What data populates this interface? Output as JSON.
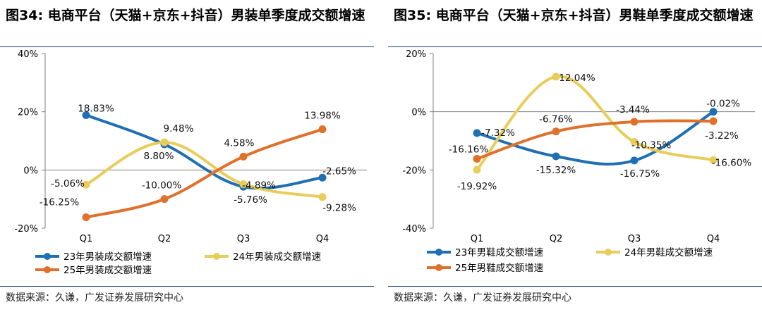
{
  "charts": [
    {
      "figure_label": "图34:",
      "title": "电商平台（天猫+京东+抖音）男装单季度成交额增速",
      "source": "数据来源：久谦，广发证券发展研究中心"
    },
    {
      "figure_label": "图35:",
      "title": "电商平台（天猫+京东+抖音）男鞋单季度成交额增速",
      "source": "数据来源：久谦，广发证券发展研究中心"
    }
  ],
  "chart_data": [
    {
      "type": "line",
      "title": "图34: 电商平台（天猫+京东+抖音）男装单季度成交额增速",
      "categories": [
        "Q1",
        "Q2",
        "Q3",
        "Q4"
      ],
      "ylim": [
        -20,
        40
      ],
      "yticks": [
        -20,
        0,
        20,
        40
      ],
      "ytick_labels": [
        "-20%",
        "0%",
        "20%",
        "40%"
      ],
      "grid": false,
      "legend_position": "bottom",
      "series": [
        {
          "name": "23年男装成交额增速",
          "color": "#1f6fb2",
          "values": [
            18.83,
            8.8,
            -5.76,
            -2.65
          ],
          "labels": [
            "18.83%",
            "8.80%",
            "-5.76%",
            "-2.65%"
          ]
        },
        {
          "name": "24年男装成交额增速",
          "color": "#e8cd5a",
          "values": [
            -5.06,
            9.48,
            -4.89,
            -9.28
          ],
          "labels": [
            "-5.06%",
            "9.48%",
            "-4.89%",
            "-9.28%"
          ]
        },
        {
          "name": "25年男装成交额增速",
          "color": "#e0702b",
          "values": [
            -16.25,
            -10.0,
            4.58,
            13.98
          ],
          "labels": [
            "-16.25%",
            "-10.00%",
            "4.58%",
            "13.98%"
          ]
        }
      ]
    },
    {
      "type": "line",
      "title": "图35: 电商平台（天猫+京东+抖音）男鞋单季度成交额增速",
      "categories": [
        "Q1",
        "Q2",
        "Q3",
        "Q4"
      ],
      "ylim": [
        -40,
        20
      ],
      "yticks": [
        -40,
        -20,
        0,
        20
      ],
      "ytick_labels": [
        "-40%",
        "-20%",
        "0%",
        "20%"
      ],
      "grid": false,
      "legend_position": "bottom",
      "series": [
        {
          "name": "23年男鞋成交额增速",
          "color": "#1f6fb2",
          "values": [
            -7.32,
            -15.32,
            -16.75,
            -0.02
          ],
          "labels": [
            "-7.32%",
            "-15.32%",
            "-16.75%",
            "-0.02%"
          ]
        },
        {
          "name": "24年男鞋成交额增速",
          "color": "#e8cd5a",
          "values": [
            -19.92,
            12.04,
            -10.35,
            -16.6
          ],
          "labels": [
            "-19.92%",
            "12.04%",
            "-10.35%",
            "-16.60%"
          ]
        },
        {
          "name": "25年男鞋成交额增速",
          "color": "#e0702b",
          "values": [
            -16.16,
            -6.76,
            -3.44,
            -3.22
          ],
          "labels": [
            "-16.16%",
            "-6.76%",
            "-3.44%",
            "-3.22%"
          ]
        }
      ]
    }
  ]
}
